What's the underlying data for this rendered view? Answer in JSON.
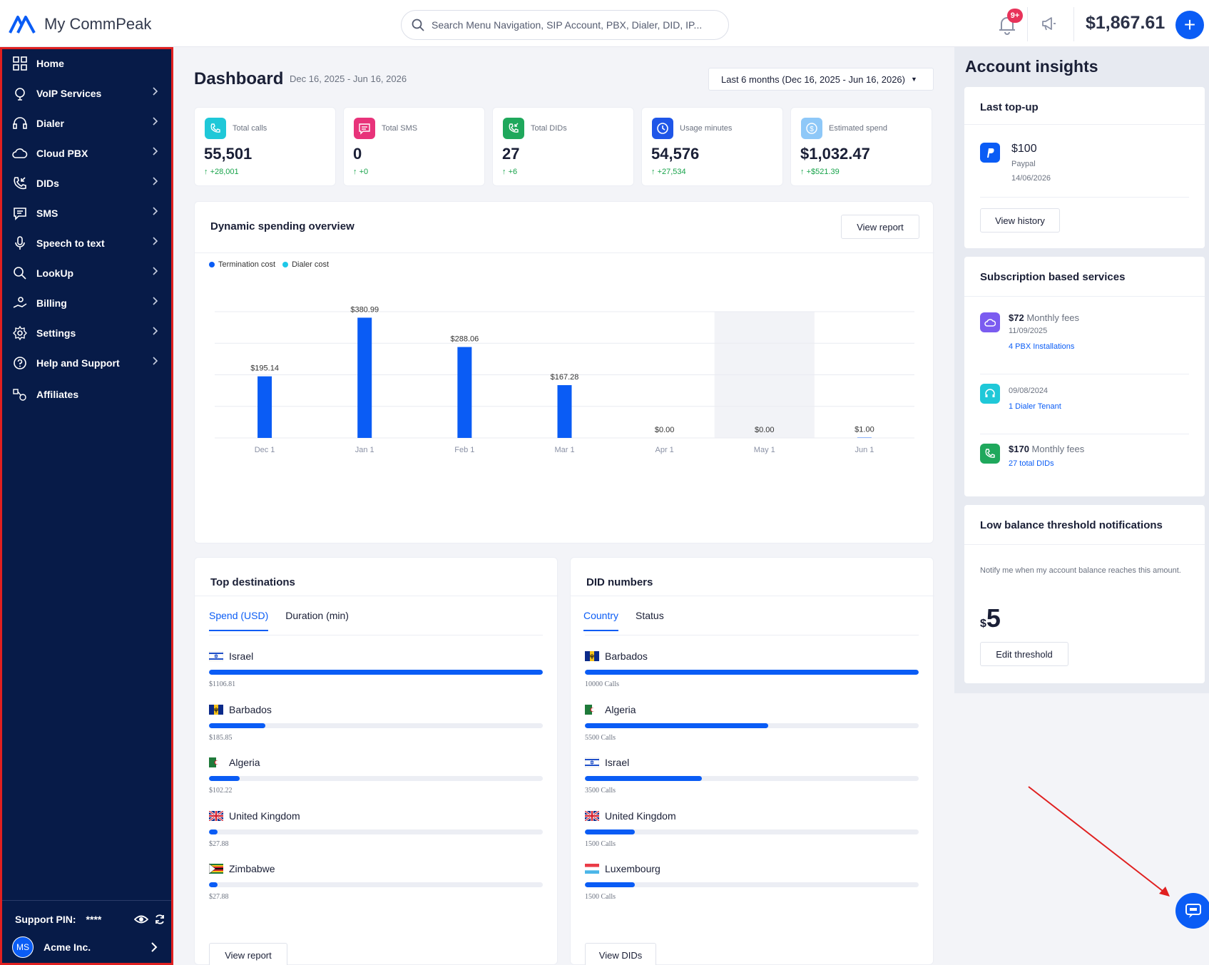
{
  "header": {
    "brand": "My CommPeak",
    "search_placeholder": "Search Menu Navigation, SIP Account, PBX, Dialer, DID, IP...",
    "notification_badge": "9+",
    "balance": "$1,867.61"
  },
  "sidebar": {
    "items": [
      {
        "label": "Home",
        "icon": "grid-icon"
      },
      {
        "label": "VoIP Services",
        "icon": "voip-icon"
      },
      {
        "label": "Dialer",
        "icon": "headset-icon"
      },
      {
        "label": "Cloud PBX",
        "icon": "cloud-phone-icon"
      },
      {
        "label": "DIDs",
        "icon": "phone-incoming-icon"
      },
      {
        "label": "SMS",
        "icon": "chat-icon"
      },
      {
        "label": "Speech to text",
        "icon": "mic-icon"
      },
      {
        "label": "LookUp",
        "icon": "search-icon"
      },
      {
        "label": "Billing",
        "icon": "billing-icon"
      },
      {
        "label": "Settings",
        "icon": "gear-icon"
      },
      {
        "label": "Help and Support",
        "icon": "help-icon"
      },
      {
        "label": "Affiliates",
        "icon": "affiliates-icon"
      }
    ],
    "support_pin_label": "Support PIN:",
    "support_pin_value": "****",
    "account_initials": "MS",
    "account_name": "Acme Inc."
  },
  "dashboard": {
    "title": "Dashboard",
    "date_range": "Dec 16, 2025 - Jun 16, 2026",
    "range_button": "Last 6 months (Dec 16, 2025 - Jun 16, 2026)"
  },
  "stats": [
    {
      "label": "Total calls",
      "value": "55,501",
      "delta": "+28,001",
      "color": "#1fc8d8"
    },
    {
      "label": "Total SMS",
      "value": "0",
      "delta": "+0",
      "color": "#e8337a"
    },
    {
      "label": "Total DIDs",
      "value": "27",
      "delta": "+6",
      "color": "#1fa85c"
    },
    {
      "label": "Usage minutes",
      "value": "54,576",
      "delta": "+27,534",
      "color": "#1f56e8"
    },
    {
      "label": "Estimated spend",
      "value": "$1,032.47",
      "delta": "+$521.39",
      "color": "#8ec8f8"
    }
  ],
  "spending": {
    "title": "Dynamic spending overview",
    "button": "View report"
  },
  "chart_data": {
    "type": "bar",
    "categories": [
      "Dec 1",
      "Jan 1",
      "Feb 1",
      "Mar 1",
      "Apr 1",
      "May 1",
      "Jun 1"
    ],
    "series": [
      {
        "name": "Termination cost",
        "values": [
          195.14,
          380.99,
          288.06,
          167.28,
          0.0,
          0.0,
          1.0
        ],
        "color": "#0a5cf5"
      },
      {
        "name": "Dialer cost",
        "values": [
          0,
          0,
          0,
          0,
          0,
          0,
          0
        ],
        "color": "#1fc8e8"
      }
    ],
    "data_labels": [
      "$195.14",
      "$380.99",
      "$288.06",
      "$167.28",
      "$0.00",
      "$0.00",
      "$1.00"
    ],
    "ylim": [
      0,
      400
    ],
    "grid": true,
    "highlight_category": "May 1",
    "legend": "top-left"
  },
  "top_destinations": {
    "title": "Top destinations",
    "tabs": [
      "Spend (USD)",
      "Duration (min)"
    ],
    "items": [
      {
        "name": "Israel",
        "value": "$1106.81",
        "fraction": 1.0,
        "flag": "il"
      },
      {
        "name": "Barbados",
        "value": "$185.85",
        "fraction": 0.168,
        "flag": "bb"
      },
      {
        "name": "Algeria",
        "value": "$102.22",
        "fraction": 0.092,
        "flag": "dz"
      },
      {
        "name": "United Kingdom",
        "value": "$27.88",
        "fraction": 0.025,
        "flag": "gb"
      },
      {
        "name": "Zimbabwe",
        "value": "$27.88",
        "fraction": 0.025,
        "flag": "zw"
      }
    ],
    "button": "View report"
  },
  "did_numbers": {
    "title": "DID numbers",
    "tabs": [
      "Country",
      "Status"
    ],
    "items": [
      {
        "name": "Barbados",
        "value": "10000 Calls",
        "fraction": 1.0,
        "flag": "bb"
      },
      {
        "name": "Algeria",
        "value": "5500 Calls",
        "fraction": 0.55,
        "flag": "dz"
      },
      {
        "name": "Israel",
        "value": "3500 Calls",
        "fraction": 0.35,
        "flag": "il"
      },
      {
        "name": "United Kingdom",
        "value": "1500 Calls",
        "fraction": 0.15,
        "flag": "gb"
      },
      {
        "name": "Luxembourg",
        "value": "1500 Calls",
        "fraction": 0.15,
        "flag": "lu"
      }
    ],
    "button": "View DIDs"
  },
  "insights": {
    "title": "Account insights",
    "last_topup": {
      "title": "Last top-up",
      "amount": "$100",
      "method": "Paypal",
      "date": "14/06/2026",
      "button": "View history"
    },
    "subscriptions": {
      "title": "Subscription based services",
      "items": [
        {
          "amount": "$72",
          "suffix": "Monthly fees",
          "date": "11/09/2025",
          "link": "4 PBX Installations",
          "color": "#7b5cf0"
        },
        {
          "amount": "",
          "suffix": "",
          "date": "09/08/2024",
          "link": "1 Dialer Tenant",
          "color": "#1fc8d8"
        },
        {
          "amount": "$170",
          "suffix": "Monthly fees",
          "date": "",
          "link": "27 total DIDs",
          "color": "#1fa85c"
        }
      ]
    },
    "threshold": {
      "title": "Low balance threshold notifications",
      "description": "Notify me when my account balance reaches this amount.",
      "currency": "$",
      "value": "5",
      "button": "Edit threshold"
    }
  }
}
